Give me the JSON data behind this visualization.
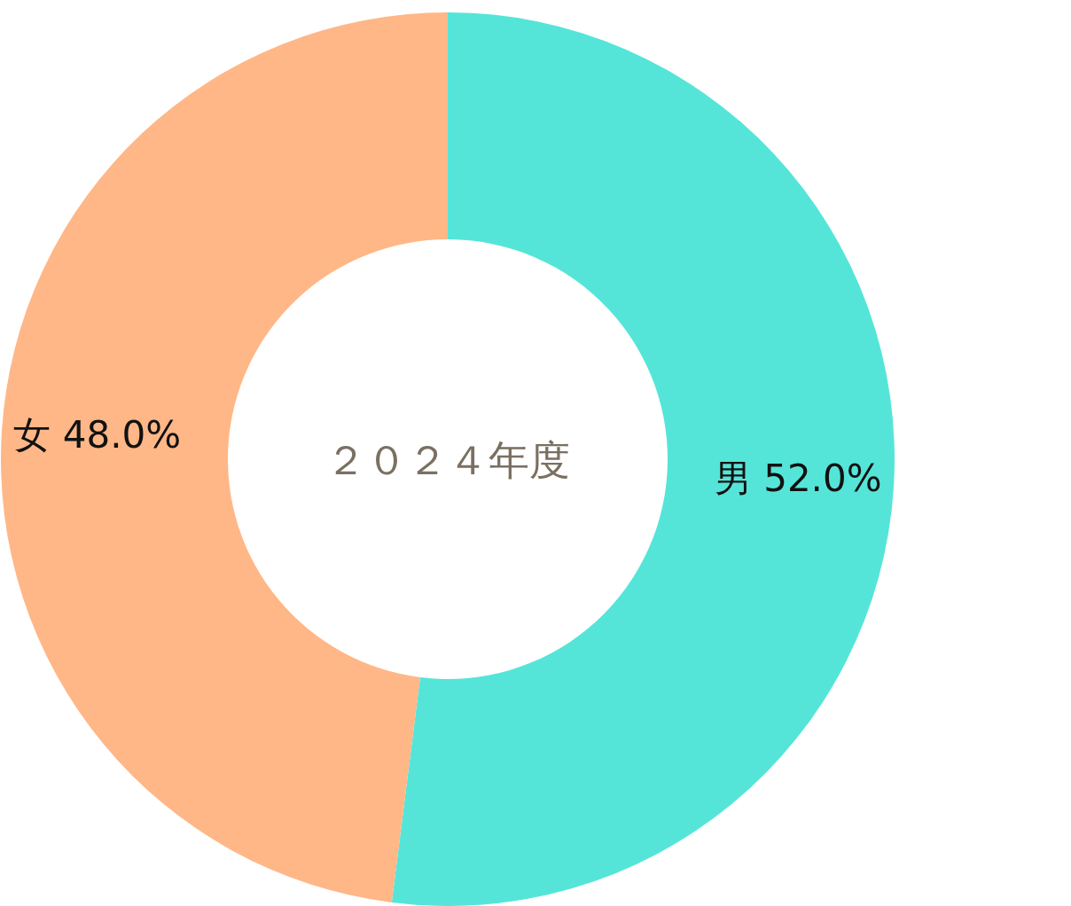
{
  "chart_data": {
    "type": "donut",
    "title": "２０２４年度",
    "categories": [
      "男",
      "女"
    ],
    "values": [
      52.0,
      48.0
    ],
    "value_labels": [
      "52.0%",
      "48.0%"
    ],
    "colors": [
      "#55e5d8",
      "#ffb787"
    ],
    "legend": false
  }
}
